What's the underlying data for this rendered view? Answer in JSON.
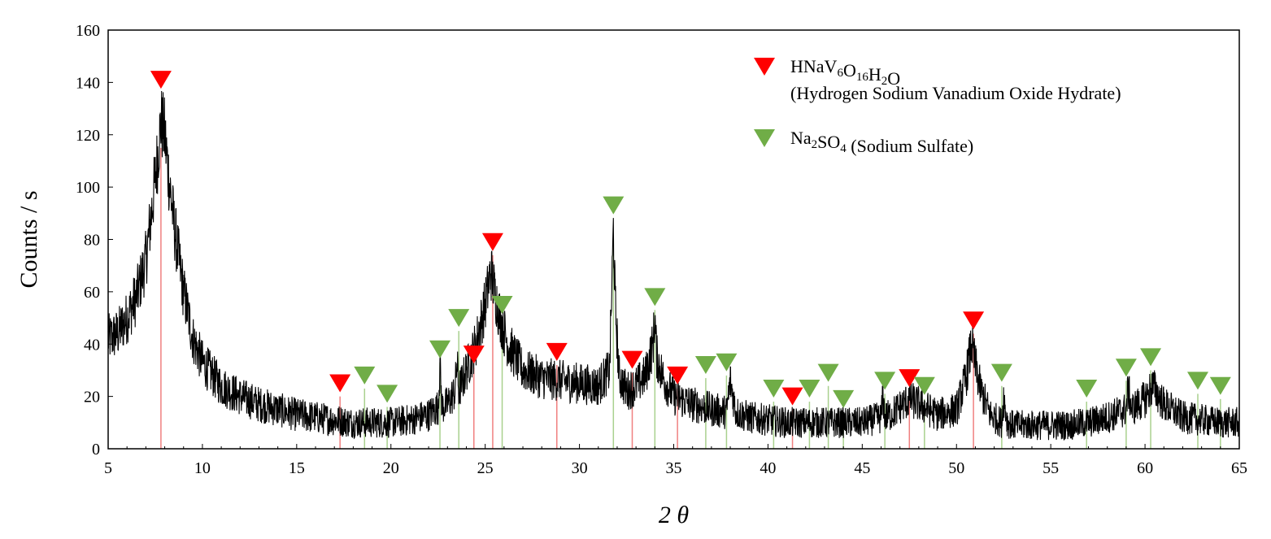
{
  "chart_data": {
    "type": "line",
    "xlabel": "2 θ",
    "ylabel": "Counts / s",
    "xlim": [
      5,
      65
    ],
    "ylim": [
      0,
      160
    ],
    "x_ticks": [
      5,
      10,
      15,
      20,
      25,
      30,
      35,
      40,
      45,
      50,
      55,
      60,
      65
    ],
    "y_ticks": [
      0,
      20,
      40,
      60,
      80,
      100,
      120,
      140,
      160
    ],
    "x_tick_labels": [
      "5",
      "10",
      "15",
      "20",
      "25",
      "30",
      "35",
      "40",
      "45",
      "50",
      "55",
      "60",
      "65"
    ],
    "y_tick_labels": [
      "0",
      "20",
      "40",
      "60",
      "80",
      "100",
      "120",
      "140",
      "160"
    ],
    "grid": false,
    "legend_position": "top-right",
    "colors": {
      "trace": "#000000",
      "hnav": "#ff0000",
      "hnav_line": "#f08080",
      "na2so4": "#70ad47",
      "na2so4_line": "#a9d18e"
    },
    "series": [
      {
        "key": "xrd",
        "values_note_free": true,
        "x": [
          5,
          5.5,
          6,
          6.5,
          7,
          7.3,
          7.6,
          7.8,
          8.0,
          8.2,
          8.5,
          9,
          9.5,
          10,
          11,
          12,
          13,
          14,
          15,
          16,
          17,
          18,
          19,
          20,
          21,
          22,
          22.5,
          22.6,
          22.7,
          23,
          23.4,
          23.5,
          23.6,
          24,
          24.5,
          25,
          25.3,
          25.5,
          25.8,
          26.2,
          27,
          28,
          29,
          30,
          31,
          31.6,
          31.8,
          31.9,
          32.1,
          32.5,
          33,
          33.5,
          33.9,
          34.0,
          34.1,
          34.5,
          35,
          36,
          37,
          37.8,
          38,
          38.3,
          39,
          40,
          41,
          42,
          43,
          44,
          45,
          46,
          46.1,
          46.2,
          46.5,
          47,
          47.5,
          48,
          49,
          50,
          50.5,
          50.8,
          51,
          51.3,
          51.8,
          52.4,
          52.5,
          52.7,
          53,
          54,
          55,
          56,
          57,
          58,
          59,
          59.1,
          59.3,
          60,
          60.4,
          61,
          62,
          63,
          64,
          65
        ],
        "y": [
          42,
          44,
          50,
          58,
          72,
          90,
          110,
          125,
          120,
          105,
          85,
          60,
          42,
          33,
          24,
          20,
          17,
          15,
          13,
          12,
          11,
          10,
          10,
          10,
          11,
          13,
          16,
          33,
          16,
          17,
          22,
          33,
          22,
          30,
          40,
          55,
          68,
          60,
          50,
          40,
          30,
          27,
          26,
          25,
          24,
          30,
          84,
          55,
          28,
          22,
          24,
          28,
          40,
          50,
          35,
          26,
          20,
          17,
          15,
          14,
          26,
          14,
          12,
          11,
          10,
          10,
          10,
          10,
          10,
          12,
          20,
          12,
          13,
          16,
          19,
          17,
          13,
          15,
          27,
          40,
          32,
          22,
          13,
          10,
          20,
          10,
          9,
          9,
          9,
          9,
          10,
          12,
          15,
          23,
          15,
          19,
          24,
          17,
          12,
          11,
          10,
          10
        ]
      }
    ],
    "reference_peaks": {
      "hnav": [
        7.8,
        17.3,
        24.4,
        25.4,
        28.8,
        32.8,
        35.2,
        41.3,
        47.5,
        50.9
      ],
      "hnav_markers": [
        141,
        25,
        36,
        79,
        37,
        34,
        28,
        20,
        27,
        49
      ],
      "na2so4": [
        18.6,
        19.8,
        22.6,
        23.6,
        25.9,
        31.8,
        34.0,
        36.7,
        37.8,
        40.3,
        42.2,
        43.2,
        44.0,
        46.2,
        48.3,
        52.4,
        56.9,
        59.0,
        60.3,
        62.8,
        64.0
      ],
      "na2so4_markers": [
        28,
        21,
        38,
        50,
        55,
        93,
        58,
        32,
        33,
        23,
        23,
        29,
        19,
        26,
        24,
        29,
        23,
        31,
        35,
        26,
        24
      ]
    },
    "legend": [
      {
        "key": "hnav",
        "parts": [
          {
            "text": "HNaV",
            "sub": false
          },
          {
            "text": "6",
            "sub": true
          },
          {
            "text": "O",
            "sub": false
          },
          {
            "text": "16",
            "sub": true
          },
          {
            "text": "H",
            "sub": false
          },
          {
            "text": "2",
            "sub": true
          },
          {
            "text": "O",
            "sub": false
          }
        ],
        "line2": "(Hydrogen Sodium Vanadium Oxide Hydrate)"
      },
      {
        "key": "na2so4",
        "parts": [
          {
            "text": "Na",
            "sub": false
          },
          {
            "text": "2",
            "sub": true
          },
          {
            "text": "SO",
            "sub": false
          },
          {
            "text": "4",
            "sub": true
          },
          {
            "text": " (Sodium Sulfate)",
            "sub": false
          }
        ],
        "line2": ""
      }
    ]
  }
}
